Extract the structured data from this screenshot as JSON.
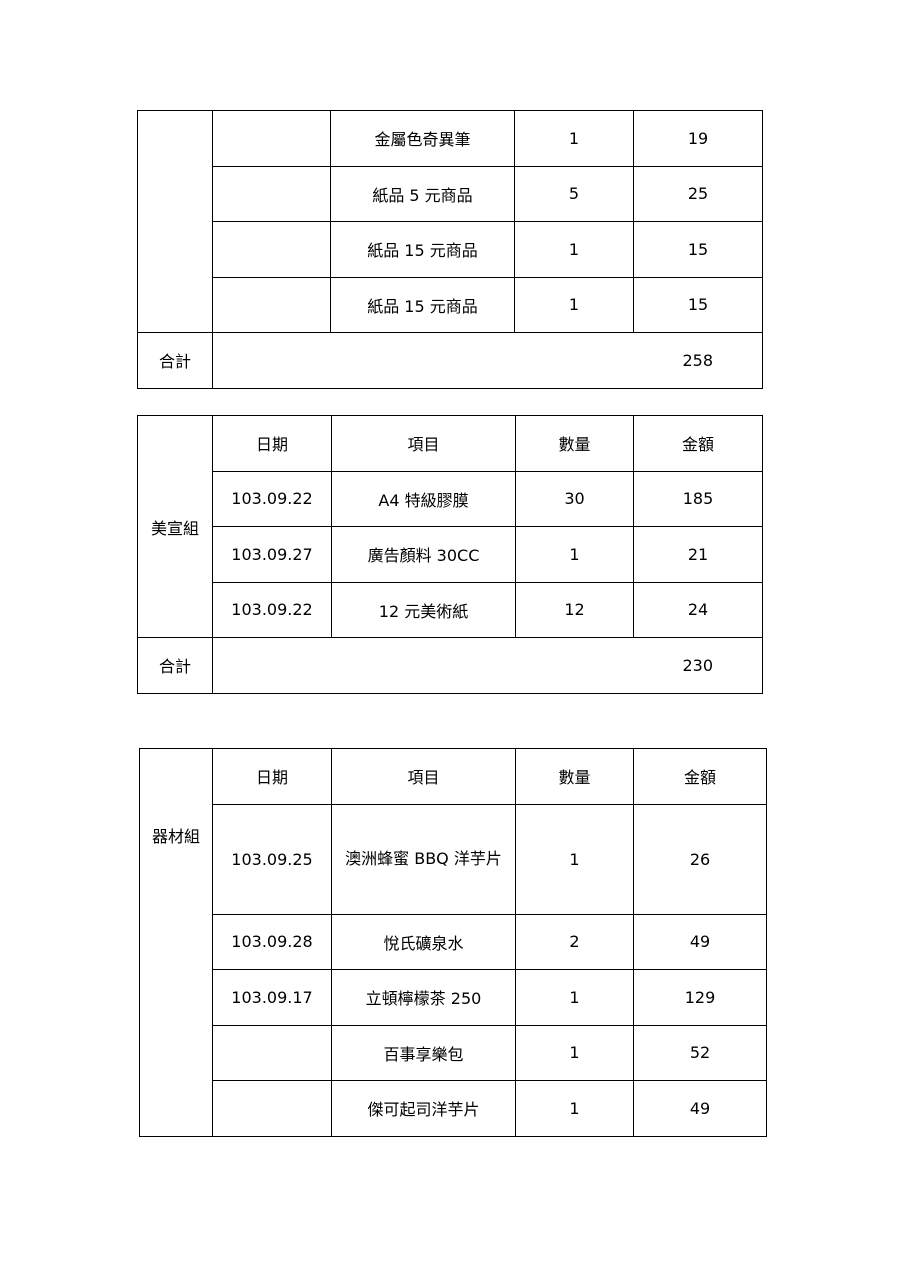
{
  "table1": {
    "rows": [
      {
        "date": "",
        "item": "金屬色奇異筆",
        "qty": "1",
        "amount": "19"
      },
      {
        "date": "",
        "item": "紙品 5 元商品",
        "qty": "5",
        "amount": "25"
      },
      {
        "date": "",
        "item": "紙品 15 元商品",
        "qty": "1",
        "amount": "15"
      },
      {
        "date": "",
        "item": "紙品 15 元商品",
        "qty": "1",
        "amount": "15"
      }
    ],
    "total_label": "合計",
    "total": "258"
  },
  "table2": {
    "group": "美宣組",
    "headers": {
      "date": "日期",
      "item": "項目",
      "qty": "數量",
      "amount": "金額"
    },
    "rows": [
      {
        "date": "103.09.22",
        "item": "A4 特級膠膜",
        "qty": "30",
        "amount": "185"
      },
      {
        "date": "103.09.27",
        "item": "廣告顏料 30CC",
        "qty": "1",
        "amount": "21"
      },
      {
        "date": "103.09.22",
        "item": "12 元美術紙",
        "qty": "12",
        "amount": "24"
      }
    ],
    "total_label": "合計",
    "total": "230"
  },
  "table3": {
    "group": "器材組",
    "headers": {
      "date": "日期",
      "item": "項目",
      "qty": "數量",
      "amount": "金額"
    },
    "rows": [
      {
        "date": "103.09.25",
        "item": "澳洲蜂蜜 BBQ 洋芋片",
        "qty": "1",
        "amount": "26"
      },
      {
        "date": "103.09.28",
        "item": "悅氏礦泉水",
        "qty": "2",
        "amount": "49"
      },
      {
        "date": "103.09.17",
        "item": "立頓檸檬茶 250",
        "qty": "1",
        "amount": "129"
      },
      {
        "date": "",
        "item": "百事享樂包",
        "qty": "1",
        "amount": "52"
      },
      {
        "date": "",
        "item": "傑可起司洋芋片",
        "qty": "1",
        "amount": "49"
      }
    ]
  }
}
